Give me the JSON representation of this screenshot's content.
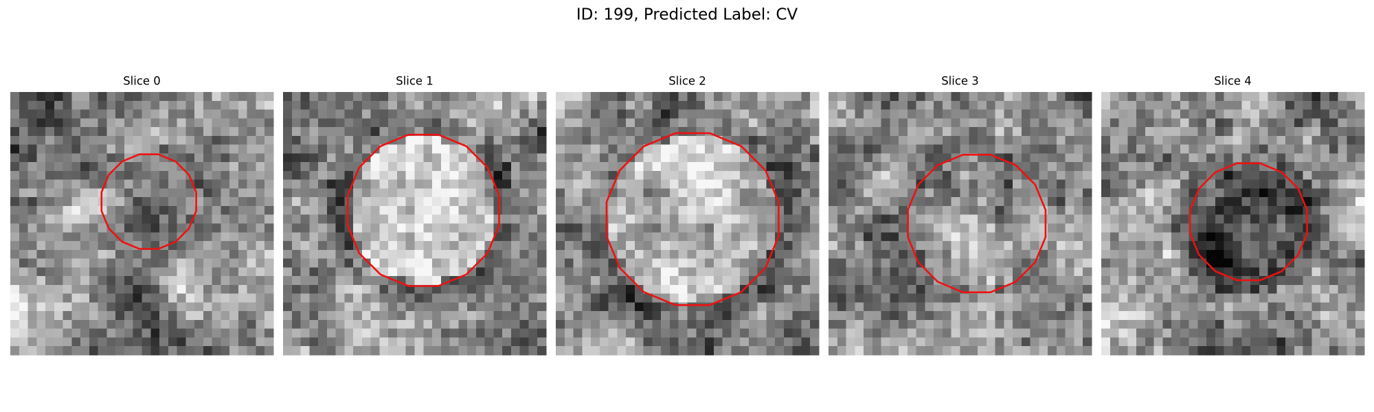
{
  "title": "ID: 199, Predicted Label: CV",
  "panels": [
    {
      "title": "Slice 0"
    },
    {
      "title": "Slice 1"
    },
    {
      "title": "Slice 2"
    },
    {
      "title": "Slice 3"
    },
    {
      "title": "Slice 4"
    }
  ]
}
